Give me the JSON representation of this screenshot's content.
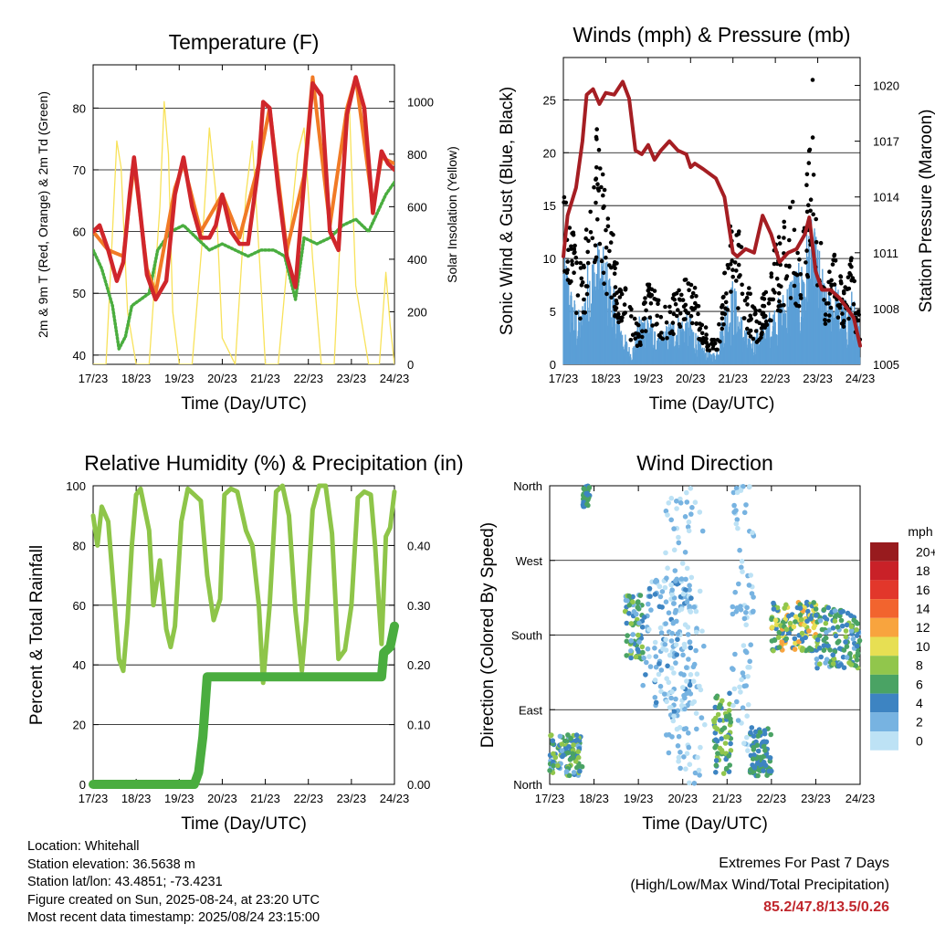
{
  "x_tick_labels": [
    "17/23",
    "18/23",
    "19/23",
    "20/23",
    "21/23",
    "22/23",
    "23/23",
    "24/23"
  ],
  "colors": {
    "temp_2m": "#d0262b",
    "temp_9m": "#f17a25",
    "dewpoint": "#4aad3f",
    "solar": "#f8e25a",
    "wind": "#5b9fd6",
    "gust": "#000000",
    "pressure": "#a51e23",
    "rh": "#8ec549",
    "precip": "#4aad3f"
  },
  "chart_data": [
    {
      "id": "temperature",
      "type": "line",
      "title": "Temperature (F)",
      "xlabel": "Time (Day/UTC)",
      "ylabel": "2m & 9m T (Red, Orange) & 2m Td (Green)",
      "y2label": "Solar Insolation (Yellow)",
      "ylim": [
        38.5,
        87
      ],
      "y_ticks": [
        40,
        50,
        60,
        70,
        80
      ],
      "y2lim": [
        0,
        1140
      ],
      "y2_ticks": [
        0,
        200,
        400,
        600,
        800,
        1000
      ],
      "x_unit": "days since 17/23",
      "xlim": [
        0,
        7
      ],
      "series": [
        {
          "name": "2m T",
          "axis": "left",
          "x": [
            0,
            0.15,
            0.35,
            0.55,
            0.7,
            0.85,
            0.95,
            1.05,
            1.25,
            1.45,
            1.7,
            1.9,
            2.1,
            2.3,
            2.5,
            2.7,
            2.85,
            3.0,
            3.2,
            3.4,
            3.6,
            3.85,
            3.95,
            4.1,
            4.3,
            4.5,
            4.7,
            4.9,
            5.1,
            5.3,
            5.5,
            5.7,
            5.9,
            6.1,
            6.3,
            6.5,
            6.7,
            6.85,
            7.0
          ],
          "values": [
            60,
            61,
            57,
            52,
            55,
            66,
            72,
            66,
            53,
            49,
            52,
            66,
            72,
            64,
            59,
            59,
            61,
            66,
            60,
            58,
            58,
            71,
            81,
            80,
            67,
            56,
            51,
            68,
            84,
            82,
            60,
            57,
            79,
            85,
            80,
            63,
            73,
            71,
            70
          ]
        },
        {
          "name": "9m T",
          "axis": "left",
          "x": [
            0,
            0.35,
            0.7,
            0.95,
            1.25,
            1.45,
            1.9,
            2.1,
            2.5,
            3.0,
            3.4,
            3.85,
            4.1,
            4.5,
            4.9,
            5.1,
            5.5,
            5.9,
            6.1,
            6.5,
            6.7,
            7.0
          ],
          "values": [
            60,
            57,
            56,
            71,
            54,
            50,
            67,
            71,
            60,
            66,
            59,
            71,
            80,
            57,
            69,
            85,
            61,
            80,
            85,
            64,
            72,
            71
          ]
        },
        {
          "name": "2m Td",
          "axis": "left",
          "x": [
            0,
            0.2,
            0.45,
            0.6,
            0.75,
            0.9,
            1.1,
            1.3,
            1.5,
            1.8,
            2.1,
            2.4,
            2.7,
            3.0,
            3.3,
            3.6,
            3.9,
            4.2,
            4.45,
            4.7,
            4.9,
            5.2,
            5.5,
            5.8,
            6.1,
            6.4,
            6.6,
            6.8,
            7.0
          ],
          "values": [
            57,
            54,
            48,
            41,
            43,
            48,
            49,
            50,
            57,
            60,
            61,
            59,
            57,
            58,
            57,
            56,
            57,
            57,
            56,
            49,
            59,
            58,
            59,
            61,
            62,
            60,
            63,
            66,
            68
          ]
        },
        {
          "name": "Solar",
          "axis": "right",
          "x": [
            0,
            0.3,
            0.42,
            0.55,
            0.65,
            0.8,
            1.0,
            1.3,
            1.55,
            1.65,
            1.75,
            1.85,
            2.0,
            2.3,
            2.55,
            2.7,
            2.85,
            3.0,
            3.3,
            3.55,
            3.7,
            3.9,
            4.0,
            4.3,
            4.6,
            4.75,
            4.9,
            5.1,
            5.3,
            5.6,
            5.8,
            5.95,
            6.1,
            6.4,
            6.65,
            6.8,
            6.9,
            7.0
          ],
          "values": [
            0,
            0,
            400,
            850,
            750,
            200,
            0,
            0,
            600,
            1000,
            800,
            200,
            0,
            0,
            500,
            900,
            650,
            100,
            0,
            650,
            850,
            300,
            0,
            0,
            550,
            800,
            900,
            400,
            0,
            0,
            700,
            1000,
            300,
            0,
            0,
            350,
            150,
            0
          ]
        }
      ]
    },
    {
      "id": "winds",
      "type": "scatter",
      "title": "Winds (mph) & Pressure (mb)",
      "xlabel": "Time (Day/UTC)",
      "ylabel": "Sonic Wind & Gust (Blue, Black)",
      "y2label": "Station Pressure (Maroon)",
      "ylim": [
        0,
        29
      ],
      "y_ticks": [
        0,
        5,
        10,
        15,
        20,
        25
      ],
      "y2lim": [
        1005,
        1021.5
      ],
      "y2_ticks": [
        1005,
        1008,
        1011,
        1014,
        1017,
        1020
      ],
      "x_unit": "days since 17/23",
      "xlim": [
        0,
        7
      ],
      "series": [
        {
          "name": "Gust",
          "x": [
            0,
            0.1,
            0.2,
            0.3,
            0.45,
            0.6,
            0.75,
            0.9,
            1.0,
            1.2,
            1.4,
            1.6,
            1.8,
            2.0,
            2.2,
            2.4,
            2.6,
            2.8,
            3.0,
            3.2,
            3.4,
            3.6,
            3.8,
            4.0,
            4.2,
            4.4,
            4.6,
            4.8,
            5.0,
            5.2,
            5.4,
            5.6,
            5.8,
            5.9,
            6.0,
            6.2,
            6.4,
            6.6,
            6.8,
            7.0
          ],
          "values": [
            20,
            17,
            12,
            10,
            8,
            14,
            22,
            18,
            15,
            10,
            7,
            5,
            3,
            7,
            6,
            5,
            6,
            7,
            8,
            5,
            3,
            2,
            8,
            14,
            10,
            6,
            4,
            8,
            10,
            12,
            14,
            9,
            18,
            25,
            12,
            8,
            10,
            7,
            9,
            4
          ]
        },
        {
          "name": "Wind",
          "x": [
            0,
            0.2,
            0.4,
            0.6,
            0.8,
            1.0,
            1.2,
            1.4,
            1.6,
            1.8,
            2.0,
            2.2,
            2.4,
            2.6,
            2.8,
            3.0,
            3.2,
            3.4,
            3.6,
            3.8,
            4.0,
            4.2,
            4.4,
            4.6,
            4.8,
            5.0,
            5.2,
            5.4,
            5.6,
            5.8,
            6.0,
            6.2,
            6.4,
            6.6,
            6.8,
            7.0
          ],
          "values": [
            10,
            6,
            4,
            9,
            10,
            9,
            6,
            3,
            1,
            4,
            5,
            2,
            3,
            4,
            4,
            4,
            2,
            1,
            1,
            5,
            7,
            4,
            2,
            3,
            4,
            5,
            6,
            8,
            8,
            12,
            10,
            6,
            7,
            5,
            6,
            3
          ]
        },
        {
          "name": "Pressure",
          "axis": "right",
          "x": [
            0,
            0.1,
            0.3,
            0.45,
            0.55,
            0.7,
            0.85,
            1.0,
            1.2,
            1.4,
            1.55,
            1.7,
            1.85,
            2.0,
            2.15,
            2.3,
            2.5,
            2.7,
            2.9,
            3.0,
            3.1,
            3.3,
            3.6,
            3.8,
            4.0,
            4.1,
            4.3,
            4.5,
            4.7,
            4.9,
            5.1,
            5.3,
            5.5,
            5.7,
            5.8,
            5.95,
            6.1,
            6.3,
            6.5,
            6.7,
            6.85,
            7.0
          ],
          "values": [
            1010.8,
            1013,
            1014.5,
            1017,
            1019.5,
            1019.8,
            1019,
            1019.6,
            1019.5,
            1020.2,
            1019.3,
            1016.5,
            1016.3,
            1016.8,
            1016,
            1016.5,
            1017,
            1016.5,
            1016.3,
            1015.6,
            1015.8,
            1015.5,
            1015,
            1014,
            1011,
            1010.8,
            1011.2,
            1011,
            1013,
            1012,
            1010.5,
            1011,
            1011.2,
            1012,
            1012.9,
            1010,
            1009,
            1009,
            1008.6,
            1008,
            1007.5,
            1006
          ]
        }
      ]
    },
    {
      "id": "humidity",
      "type": "line",
      "title": "Relative Humidity (%) & Precipitation (in)",
      "xlabel": "Time (Day/UTC)",
      "ylabel": "Percent & Total Rainfall",
      "ylim": [
        0,
        100
      ],
      "y_ticks": [
        0,
        20,
        40,
        60,
        80,
        100
      ],
      "y2lim": [
        0,
        0.5
      ],
      "y2_ticks": [
        "0.00",
        "0.10",
        "0.20",
        "0.30",
        "0.40"
      ],
      "x_unit": "days since 17/23",
      "xlim": [
        0,
        7
      ],
      "series": [
        {
          "name": "RH",
          "x": [
            0,
            0.1,
            0.2,
            0.35,
            0.45,
            0.6,
            0.7,
            0.8,
            0.9,
            1.0,
            1.1,
            1.3,
            1.4,
            1.55,
            1.7,
            1.8,
            1.9,
            2.05,
            2.2,
            2.35,
            2.5,
            2.65,
            2.8,
            2.95,
            3.05,
            3.2,
            3.35,
            3.55,
            3.7,
            3.85,
            3.95,
            4.1,
            4.25,
            4.4,
            4.55,
            4.7,
            4.85,
            4.95,
            5.1,
            5.25,
            5.4,
            5.55,
            5.7,
            5.85,
            6.0,
            6.15,
            6.3,
            6.45,
            6.55,
            6.7,
            6.8,
            6.9,
            7.0
          ],
          "values": [
            90,
            80,
            93,
            88,
            70,
            42,
            38,
            55,
            80,
            97,
            99,
            85,
            60,
            75,
            52,
            46,
            53,
            88,
            99,
            97,
            95,
            70,
            55,
            62,
            97,
            99,
            98,
            85,
            80,
            60,
            34,
            60,
            98,
            100,
            90,
            58,
            38,
            55,
            92,
            100,
            100,
            84,
            42,
            45,
            60,
            96,
            98,
            97,
            80,
            47,
            83,
            86,
            98
          ]
        },
        {
          "name": "Precipitation",
          "axis": "right",
          "x": [
            0,
            2.35,
            2.45,
            2.55,
            2.65,
            2.75,
            6.7,
            6.75,
            6.9,
            7.0
          ],
          "values": [
            0,
            0,
            0.02,
            0.08,
            0.18,
            0.18,
            0.18,
            0.22,
            0.23,
            0.265
          ]
        }
      ]
    },
    {
      "id": "direction",
      "type": "scatter",
      "title": "Wind Direction",
      "xlabel": "Time (Day/UTC)",
      "ylabel": "Direction (Colored By Speed)",
      "y_tick_labels": [
        "North",
        "East",
        "South",
        "West",
        "North"
      ],
      "y_ticks_deg": [
        0,
        90,
        180,
        270,
        360
      ],
      "ylim": [
        0,
        360
      ],
      "x_unit": "days since 17/23",
      "xlim": [
        0,
        7
      ],
      "legend": {
        "title": "mph",
        "labels": [
          "20+",
          "18",
          "16",
          "14",
          "12",
          "10",
          "8",
          "6",
          "4",
          "2",
          "0"
        ],
        "colors": [
          "#981b1e",
          "#c92128",
          "#e2372b",
          "#f2642e",
          "#f8a43e",
          "#e7df53",
          "#91c64c",
          "#4aa364",
          "#3d84c2",
          "#77b3e1",
          "#bde2f5"
        ],
        "placement": "right"
      },
      "clusters": [
        {
          "x": [
            0.0,
            0.75
          ],
          "dir": [
            10,
            60
          ],
          "speed": [
            2,
            9
          ]
        },
        {
          "x": [
            0.75,
            0.9
          ],
          "dir": [
            335,
            360
          ],
          "speed": [
            3,
            7
          ]
        },
        {
          "x": [
            1.7,
            2.1
          ],
          "dir": [
            150,
            230
          ],
          "speed": [
            2,
            8
          ]
        },
        {
          "x": [
            2.1,
            3.2
          ],
          "dir": [
            80,
            250
          ],
          "speed": [
            0,
            4
          ]
        },
        {
          "x": [
            2.6,
            3.5
          ],
          "dir": [
            0,
            360
          ],
          "speed": [
            0,
            2
          ]
        },
        {
          "x": [
            3.7,
            4.1
          ],
          "dir": [
            10,
            110
          ],
          "speed": [
            3,
            9
          ]
        },
        {
          "x": [
            4.1,
            4.6
          ],
          "dir": [
            40,
            360
          ],
          "speed": [
            0,
            3
          ]
        },
        {
          "x": [
            4.5,
            5.0
          ],
          "dir": [
            10,
            70
          ],
          "speed": [
            3,
            7
          ]
        },
        {
          "x": [
            5.0,
            6.0
          ],
          "dir": [
            160,
            220
          ],
          "speed": [
            3,
            12
          ]
        },
        {
          "x": [
            6.0,
            7.0
          ],
          "dir": [
            140,
            215
          ],
          "speed": [
            2,
            8
          ]
        }
      ]
    }
  ],
  "footer_left": {
    "location": "Location: Whitehall",
    "elevation": "Station elevation: 36.5638 m",
    "latlon": "Station lat/lon: 43.4851; -73.4231",
    "created": "Figure created on Sun, 2025-08-24, at 23:20 UTC",
    "recent": "Most recent data timestamp: 2025/08/24 23:15:00"
  },
  "footer_right": {
    "title": "Extremes For Past 7 Days",
    "subtitle": "(High/Low/Max Wind/Total Precipitation)",
    "values": "85.2/47.8/13.5/0.26"
  }
}
